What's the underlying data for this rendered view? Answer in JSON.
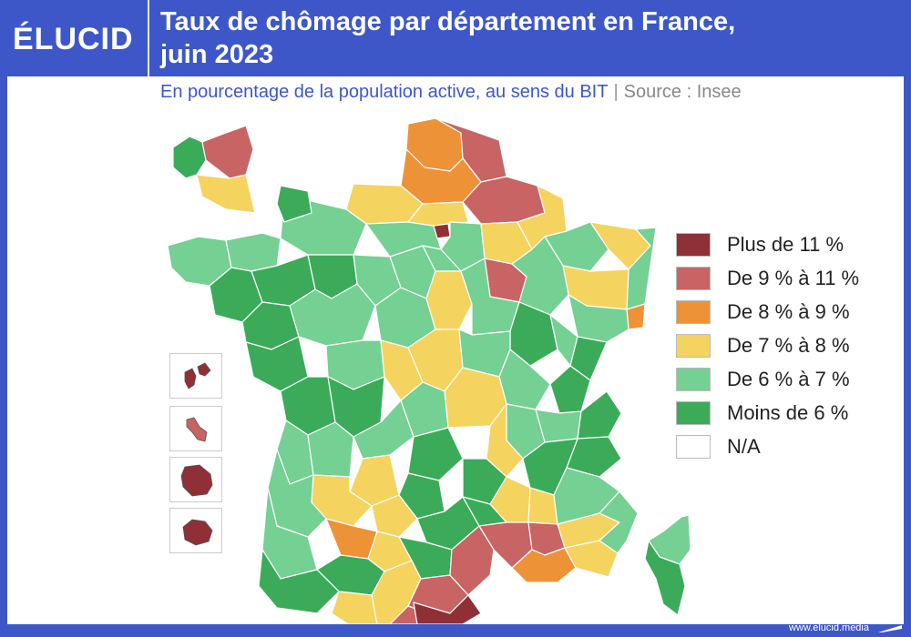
{
  "header": {
    "logo": "ÉLUCID",
    "title_line1": "Taux de chômage par département en France,",
    "title_line2": "juin 2023"
  },
  "subtitle": {
    "text": "En pourcentage de la population active, au sens du BIT",
    "separator": "|",
    "source": "Source : Insee"
  },
  "legend": [
    {
      "label": "Plus de 11 %",
      "color": "#8e3036"
    },
    {
      "label": "De 9 % à 11 %",
      "color": "#c86464"
    },
    {
      "label": "De 8 % à 9 %",
      "color": "#ee9238"
    },
    {
      "label": "De 7 % à 8 %",
      "color": "#f5d35f"
    },
    {
      "label": "De 6 % à 7 %",
      "color": "#74d093"
    },
    {
      "label": "Moins de 6 %",
      "color": "#3bab59"
    },
    {
      "label": "N/A",
      "color": "#ffffff"
    }
  ],
  "footer": {
    "url": "www.elucid.media"
  },
  "colors": {
    "brand_blue": "#3e57c8",
    "background": "#ffffff"
  }
}
